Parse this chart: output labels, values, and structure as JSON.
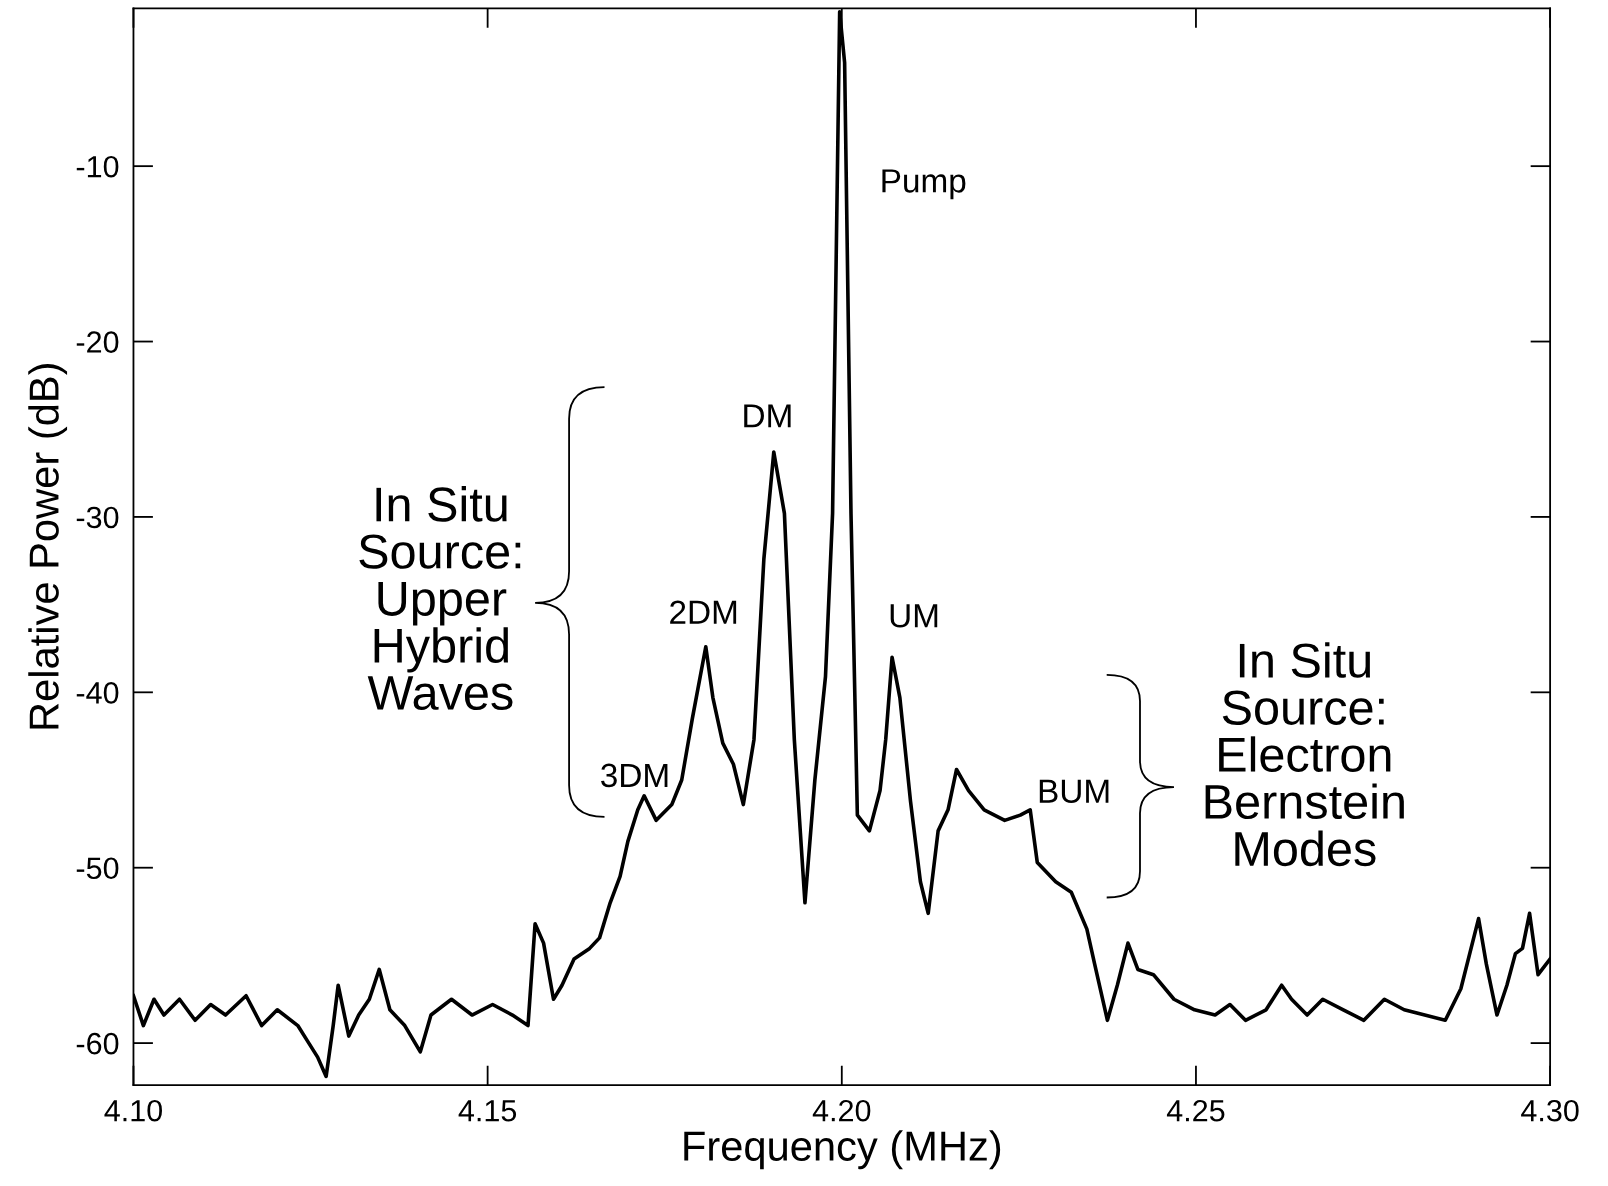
{
  "chart_data": {
    "type": "line",
    "xlabel": "Frequency (MHz)",
    "ylabel": "Relative Power (dB)",
    "xlim": [
      4.1,
      4.3
    ],
    "ylim": [
      -62.4,
      -1.0
    ],
    "xticks": [
      {
        "value": 4.1,
        "label": "4.10"
      },
      4.15,
      {
        "value": 4.2,
        "label": "4.20"
      },
      4.25,
      {
        "value": 4.3,
        "label": "4.30"
      }
    ],
    "yticks": [
      -60,
      -50,
      -40,
      -30,
      -20,
      -10
    ],
    "grid": false,
    "marker": "none",
    "line_style": "solid",
    "series": [
      {
        "color": "#000000",
        "x": [
          4.1,
          4.1014,
          4.1029,
          4.1043,
          4.1065,
          4.1087,
          4.1109,
          4.113,
          4.1159,
          4.1181,
          4.1203,
          4.1232,
          4.1246,
          4.126,
          4.1272,
          4.1282,
          4.1289,
          4.1304,
          4.1318,
          4.1333,
          4.1347,
          4.1362,
          4.1383,
          4.1405,
          4.142,
          4.1449,
          4.1478,
          4.1507,
          4.1535,
          4.1557,
          4.1567,
          4.1579,
          4.1593,
          4.1605,
          4.1622,
          4.1644,
          4.1658,
          4.1673,
          4.1687,
          4.1698,
          4.1712,
          4.1721,
          4.1738,
          4.176,
          4.1774,
          4.1789,
          4.1808,
          4.1818,
          4.1832,
          4.1847,
          4.1861,
          4.1876,
          4.189,
          4.1904,
          4.1919,
          4.1933,
          4.1948,
          4.1962,
          4.1977,
          4.1987,
          4.1997,
          4.2004,
          4.2013,
          4.2022,
          4.2039,
          4.2054,
          4.2062,
          4.2071,
          4.2082,
          4.2097,
          4.2111,
          4.2122,
          4.2136,
          4.215,
          4.2162,
          4.2179,
          4.2201,
          4.223,
          4.2252,
          4.2266,
          4.2276,
          4.2302,
          4.2324,
          4.2346,
          4.2357,
          4.2375,
          4.2389,
          4.2404,
          4.2418,
          4.244,
          4.2469,
          4.2498,
          4.2527,
          4.2548,
          4.257,
          4.2599,
          4.2621,
          4.2635,
          4.2657,
          4.2679,
          4.2708,
          4.2737,
          4.2766,
          4.2794,
          4.2823,
          4.2852,
          4.2874,
          4.2899,
          4.291,
          4.2925,
          4.2939,
          4.2951,
          4.2961,
          4.2971,
          4.2983,
          4.3
        ],
        "values": [
          -57.3,
          -59.0,
          -57.5,
          -58.4,
          -57.5,
          -58.7,
          -57.8,
          -58.4,
          -57.3,
          -59.0,
          -58.1,
          -59.0,
          -59.9,
          -60.8,
          -61.9,
          -59.0,
          -56.7,
          -59.6,
          -58.4,
          -57.5,
          -55.8,
          -58.1,
          -59.0,
          -60.5,
          -58.4,
          -57.5,
          -58.4,
          -57.8,
          -58.4,
          -59.0,
          -53.2,
          -54.3,
          -57.5,
          -56.7,
          -55.2,
          -54.6,
          -54.0,
          -52.0,
          -50.5,
          -48.5,
          -46.7,
          -45.9,
          -47.3,
          -46.4,
          -45.0,
          -41.5,
          -37.4,
          -40.3,
          -42.9,
          -44.1,
          -46.4,
          -42.7,
          -32.4,
          -26.3,
          -29.8,
          -42.7,
          -52.0,
          -45.0,
          -39.1,
          -29.8,
          -1.2,
          -4.1,
          -29.8,
          -47.0,
          -47.9,
          -45.6,
          -42.7,
          -38.0,
          -40.3,
          -46.2,
          -50.8,
          -52.6,
          -47.9,
          -46.7,
          -44.4,
          -45.6,
          -46.7,
          -47.3,
          -47.0,
          -46.7,
          -49.7,
          -50.8,
          -51.4,
          -53.5,
          -55.5,
          -58.7,
          -56.7,
          -54.3,
          -55.8,
          -56.1,
          -57.5,
          -58.1,
          -58.4,
          -57.8,
          -58.7,
          -58.1,
          -56.7,
          -57.5,
          -58.4,
          -57.5,
          -58.1,
          -58.7,
          -57.5,
          -58.1,
          -58.4,
          -58.7,
          -56.9,
          -52.9,
          -55.5,
          -58.4,
          -56.7,
          -54.9,
          -54.6,
          -52.6,
          -56.1,
          -55.2
        ]
      }
    ],
    "annotations": [
      "Pump",
      "DM",
      "2DM",
      "UM",
      "3DM",
      "BUM",
      "In Situ\nSource:\nUpper\nHybrid\nWaves",
      "In Situ\nSource:\nElectron\nBernstein\nModes"
    ]
  }
}
